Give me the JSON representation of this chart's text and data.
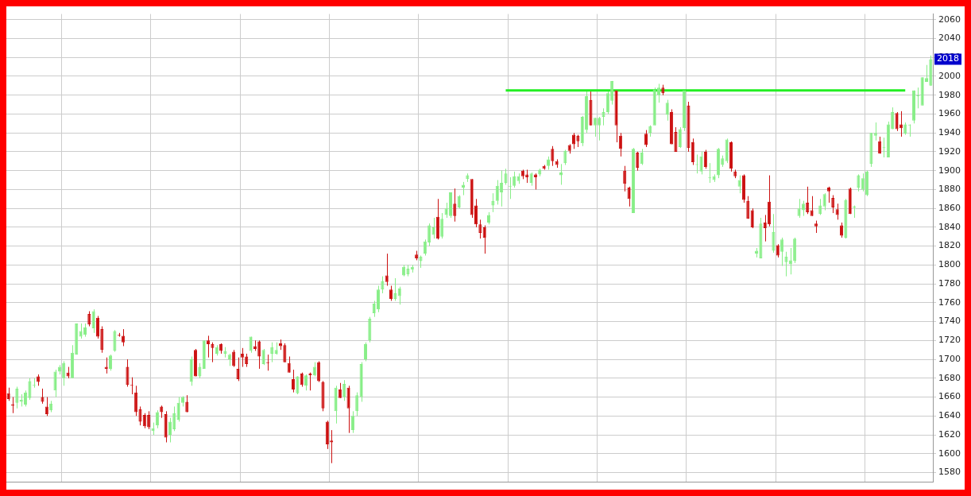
{
  "chart_data": {
    "type": "candlestick",
    "categories": [
      null,
      null,
      null,
      null,
      null,
      null,
      null,
      null,
      null,
      null,
      null,
      null,
      null,
      null,
      null,
      null,
      null,
      null,
      null,
      null,
      null,
      null,
      null,
      null,
      null,
      null,
      null,
      null,
      null,
      null,
      null,
      null,
      null,
      null,
      null,
      null,
      null,
      null,
      null,
      null,
      null,
      null,
      null,
      null,
      null,
      null,
      null,
      null,
      null,
      null,
      null,
      null,
      null,
      null,
      null,
      null,
      null,
      null,
      null,
      null,
      null,
      null,
      null,
      null,
      null,
      null,
      null,
      null,
      null,
      null,
      null,
      null,
      null,
      null,
      null,
      null,
      null,
      null,
      null,
      null,
      null,
      null,
      null,
      null,
      null,
      null,
      null,
      null,
      null,
      null,
      null,
      null,
      null,
      null,
      null,
      null,
      null,
      null,
      null,
      null,
      null,
      null,
      null,
      null,
      null,
      null,
      null,
      null,
      null,
      null,
      null,
      null,
      null,
      null,
      null,
      null,
      null,
      null,
      null,
      null,
      null,
      null,
      null,
      null,
      null,
      null,
      null,
      null,
      null,
      null,
      null,
      null,
      null,
      null,
      null,
      null,
      null,
      null,
      null,
      null,
      null,
      null,
      null,
      null,
      null,
      null,
      null,
      null,
      null,
      null,
      null,
      null,
      null,
      null,
      null,
      null,
      null,
      null,
      null,
      null,
      null,
      null,
      null,
      null,
      null,
      null,
      null,
      null,
      null,
      null,
      null,
      null,
      null,
      null,
      null,
      null,
      null,
      null,
      null,
      null,
      null,
      null,
      null,
      null,
      null,
      null,
      null,
      null,
      null,
      null,
      null,
      null,
      null,
      null,
      null,
      null,
      null,
      null,
      null,
      null,
      null,
      null,
      null,
      null,
      null,
      null,
      null,
      null,
      null,
      null,
      null,
      null,
      null,
      null,
      null,
      null,
      null,
      null
    ],
    "ohlc": [
      [
        1664,
        1670,
        1656,
        1658
      ],
      [
        1652,
        1660,
        1643,
        1651
      ],
      [
        1654,
        1671,
        1648,
        1669
      ],
      [
        1655,
        1663,
        1650,
        1657
      ],
      [
        1652,
        1667,
        1650,
        1665
      ],
      [
        1659,
        1680,
        1657,
        1677
      ],
      [
        1672,
        1680,
        1670,
        1673
      ],
      [
        1682,
        1684,
        1672,
        1676
      ],
      [
        1660,
        1669,
        1653,
        1655
      ],
      [
        1650,
        1660,
        1640,
        1642
      ],
      [
        1646,
        1656,
        1644,
        1653
      ],
      [
        1667,
        1689,
        1660,
        1687
      ],
      [
        1687,
        1694,
        1684,
        1692
      ],
      [
        1680,
        1698,
        1672,
        1696
      ],
      [
        1686,
        1692,
        1680,
        1682
      ],
      [
        1680,
        1715,
        1680,
        1707
      ],
      [
        1705,
        1738,
        1705,
        1738
      ],
      [
        1724,
        1738,
        1722,
        1730
      ],
      [
        1726,
        1738,
        1724,
        1734
      ],
      [
        1748,
        1751,
        1735,
        1737
      ],
      [
        1733,
        1753,
        1728,
        1751
      ],
      [
        1744,
        1746,
        1722,
        1724
      ],
      [
        1732,
        1735,
        1707,
        1710
      ],
      [
        1692,
        1702,
        1685,
        1690
      ],
      [
        1690,
        1705,
        1688,
        1704
      ],
      [
        1709,
        1731,
        1708,
        1730
      ],
      [
        1726,
        1728,
        1724,
        1725
      ],
      [
        1725,
        1732,
        1714,
        1718
      ],
      [
        1692,
        1700,
        1671,
        1673
      ],
      [
        1673,
        1681,
        1663,
        1672
      ],
      [
        1665,
        1672,
        1640,
        1644
      ],
      [
        1647,
        1650,
        1630,
        1634
      ],
      [
        1641,
        1643,
        1627,
        1629
      ],
      [
        1641,
        1645,
        1626,
        1628
      ],
      [
        1624,
        1633,
        1620,
        1627
      ],
      [
        1630,
        1646,
        1627,
        1644
      ],
      [
        1650,
        1651,
        1638,
        1644
      ],
      [
        1642,
        1645,
        1612,
        1617
      ],
      [
        1620,
        1638,
        1612,
        1634
      ],
      [
        1626,
        1650,
        1624,
        1643
      ],
      [
        1636,
        1660,
        1634,
        1654
      ],
      [
        1654,
        1661,
        1650,
        1660
      ],
      [
        1655,
        1662,
        1644,
        1644
      ],
      [
        1676,
        1703,
        1672,
        1700
      ],
      [
        1710,
        1711,
        1682,
        1682
      ],
      [
        1682,
        1696,
        1680,
        1692
      ],
      [
        1690,
        1720,
        1690,
        1720
      ],
      [
        1720,
        1725,
        1702,
        1716
      ],
      [
        1716,
        1718,
        1697,
        1712
      ],
      [
        1706,
        1715,
        1704,
        1713
      ],
      [
        1716,
        1717,
        1706,
        1709
      ],
      [
        1706,
        1713,
        1702,
        1709
      ],
      [
        1700,
        1706,
        1693,
        1705
      ],
      [
        1708,
        1710,
        1692,
        1693
      ],
      [
        1690,
        1702,
        1677,
        1679
      ],
      [
        1706,
        1712,
        1692,
        1702
      ],
      [
        1703,
        1706,
        1692,
        1695
      ],
      [
        1709,
        1724,
        1707,
        1724
      ],
      [
        1714,
        1720,
        1709,
        1711
      ],
      [
        1719,
        1720,
        1690,
        1703
      ],
      [
        1695,
        1711,
        1694,
        1710
      ],
      [
        1697,
        1705,
        1688,
        1696
      ],
      [
        1706,
        1718,
        1697,
        1713
      ],
      [
        1706,
        1718,
        1705,
        1710
      ],
      [
        1717,
        1721,
        1710,
        1714
      ],
      [
        1715,
        1717,
        1697,
        1697
      ],
      [
        1696,
        1703,
        1686,
        1686
      ],
      [
        1679,
        1689,
        1665,
        1668
      ],
      [
        1664,
        1682,
        1663,
        1682
      ],
      [
        1685,
        1686,
        1671,
        1673
      ],
      [
        1672,
        1684,
        1667,
        1683
      ],
      [
        1685,
        1686,
        1667,
        1683
      ],
      [
        1683,
        1697,
        1682,
        1692
      ],
      [
        1697,
        1698,
        1676,
        1677
      ],
      [
        1676,
        1677,
        1645,
        1648
      ],
      [
        1634,
        1635,
        1605,
        1610
      ],
      [
        1614,
        1625,
        1590,
        1612
      ],
      [
        1645,
        1672,
        1632,
        1670
      ],
      [
        1668,
        1675,
        1659,
        1659
      ],
      [
        1660,
        1678,
        1656,
        1674
      ],
      [
        1670,
        1672,
        1622,
        1648
      ],
      [
        1625,
        1645,
        1622,
        1640
      ],
      [
        1645,
        1665,
        1640,
        1662
      ],
      [
        1660,
        1697,
        1655,
        1695
      ],
      [
        1700,
        1718,
        1698,
        1716
      ],
      [
        1720,
        1745,
        1718,
        1743
      ],
      [
        1749,
        1762,
        1745,
        1759
      ],
      [
        1753,
        1778,
        1750,
        1774
      ],
      [
        1774,
        1788,
        1770,
        1783
      ],
      [
        1789,
        1812,
        1778,
        1782
      ],
      [
        1774,
        1778,
        1762,
        1764
      ],
      [
        1764,
        1786,
        1762,
        1770
      ],
      [
        1767,
        1777,
        1758,
        1775
      ],
      [
        1789,
        1800,
        1788,
        1798
      ],
      [
        1790,
        1800,
        1788,
        1796
      ],
      [
        1795,
        1800,
        1792,
        1798
      ],
      [
        1811,
        1815,
        1805,
        1807
      ],
      [
        1804,
        1810,
        1797,
        1809
      ],
      [
        1812,
        1827,
        1810,
        1825
      ],
      [
        1824,
        1844,
        1820,
        1842
      ],
      [
        1832,
        1850,
        1828,
        1840
      ],
      [
        1851,
        1870,
        1827,
        1828
      ],
      [
        1830,
        1855,
        1828,
        1849
      ],
      [
        1853,
        1866,
        1850,
        1860
      ],
      [
        1852,
        1877,
        1850,
        1877
      ],
      [
        1865,
        1881,
        1846,
        1852
      ],
      [
        1861,
        1874,
        1860,
        1873
      ],
      [
        1882,
        1888,
        1874,
        1885
      ],
      [
        1891,
        1897,
        1888,
        1895
      ],
      [
        1891,
        1891,
        1850,
        1853
      ],
      [
        1863,
        1870,
        1840,
        1843
      ],
      [
        1843,
        1848,
        1828,
        1834
      ],
      [
        1840,
        1842,
        1812,
        1829
      ],
      [
        1845,
        1856,
        1843,
        1853
      ],
      [
        1863,
        1876,
        1856,
        1868
      ],
      [
        1868,
        1890,
        1864,
        1884
      ],
      [
        1877,
        1900,
        1862,
        1887
      ],
      [
        1887,
        1902,
        1885,
        1897
      ],
      [
        1883,
        1893,
        1870,
        1883
      ],
      [
        1884,
        1899,
        1882,
        1894
      ],
      [
        1889,
        1897,
        1886,
        1894
      ],
      [
        1900,
        1901,
        1891,
        1894
      ],
      [
        1896,
        1901,
        1887,
        1893
      ],
      [
        1887,
        1898,
        1884,
        1897
      ],
      [
        1896,
        1897,
        1880,
        1893
      ],
      [
        1896,
        1902,
        1894,
        1901
      ],
      [
        1905,
        1906,
        1901,
        1902
      ],
      [
        1905,
        1915,
        1901,
        1912
      ],
      [
        1923,
        1926,
        1905,
        1910
      ],
      [
        1910,
        1912,
        1903,
        1906
      ],
      [
        1895,
        1907,
        1885,
        1898
      ],
      [
        1908,
        1922,
        1906,
        1921
      ],
      [
        1927,
        1928,
        1918,
        1921
      ],
      [
        1938,
        1940,
        1923,
        1928
      ],
      [
        1937,
        1938,
        1925,
        1931
      ],
      [
        1929,
        1958,
        1926,
        1957
      ],
      [
        1943,
        1985,
        1940,
        1979
      ],
      [
        1975,
        1984,
        1948,
        1948
      ],
      [
        1948,
        1956,
        1936,
        1956
      ],
      [
        1948,
        1957,
        1932,
        1956
      ],
      [
        1957,
        1966,
        1948,
        1962
      ],
      [
        1962,
        1984,
        1960,
        1982
      ],
      [
        1974,
        1995,
        1970,
        1995
      ],
      [
        1985,
        1985,
        1930,
        1948
      ],
      [
        1937,
        1940,
        1915,
        1923
      ],
      [
        1900,
        1905,
        1878,
        1886
      ],
      [
        1882,
        1883,
        1862,
        1870
      ],
      [
        1855,
        1924,
        1855,
        1923
      ],
      [
        1919,
        1920,
        1900,
        1903
      ],
      [
        1907,
        1923,
        1906,
        1919
      ],
      [
        1939,
        1943,
        1925,
        1927
      ],
      [
        1940,
        1948,
        1936,
        1947
      ],
      [
        1948,
        1988,
        1948,
        1986
      ],
      [
        1980,
        1992,
        1972,
        1988
      ],
      [
        1988,
        1991,
        1980,
        1982
      ],
      [
        1959,
        1975,
        1953,
        1972
      ],
      [
        1962,
        1965,
        1928,
        1928
      ],
      [
        1941,
        1946,
        1920,
        1920
      ],
      [
        1925,
        1946,
        1924,
        1944
      ],
      [
        1945,
        1985,
        1942,
        1985
      ],
      [
        1969,
        1973,
        1920,
        1924
      ],
      [
        1930,
        1934,
        1906,
        1909
      ],
      [
        1906,
        1917,
        1897,
        1906
      ],
      [
        1899,
        1920,
        1896,
        1915
      ],
      [
        1920,
        1922,
        1902,
        1904
      ],
      [
        1892,
        1908,
        1887,
        1892
      ],
      [
        1890,
        1896,
        1888,
        1894
      ],
      [
        1895,
        1924,
        1892,
        1923
      ],
      [
        1906,
        1916,
        1904,
        1913
      ],
      [
        1910,
        1934,
        1908,
        1933
      ],
      [
        1930,
        1931,
        1899,
        1902
      ],
      [
        1899,
        1901,
        1892,
        1894
      ],
      [
        1883,
        1895,
        1876,
        1890
      ],
      [
        1895,
        1896,
        1866,
        1869
      ],
      [
        1868,
        1873,
        1849,
        1849
      ],
      [
        1858,
        1860,
        1839,
        1840
      ],
      [
        1812,
        1818,
        1808,
        1815
      ],
      [
        1807,
        1850,
        1807,
        1844
      ],
      [
        1845,
        1853,
        1825,
        1839
      ],
      [
        1867,
        1895,
        1841,
        1843
      ],
      [
        1815,
        1854,
        1813,
        1835
      ],
      [
        1821,
        1822,
        1808,
        1810
      ],
      [
        1814,
        1829,
        1799,
        1827
      ],
      [
        1803,
        1814,
        1788,
        1809
      ],
      [
        1801,
        1818,
        1790,
        1805
      ],
      [
        1804,
        1829,
        1802,
        1828
      ],
      [
        1852,
        1870,
        1850,
        1860
      ],
      [
        1858,
        1868,
        1852,
        1865
      ],
      [
        1866,
        1883,
        1854,
        1856
      ],
      [
        1858,
        1873,
        1852,
        1852
      ],
      [
        1844,
        1847,
        1834,
        1841
      ],
      [
        1854,
        1870,
        1853,
        1863
      ],
      [
        1862,
        1876,
        1858,
        1875
      ],
      [
        1882,
        1883,
        1866,
        1878
      ],
      [
        1871,
        1874,
        1855,
        1861
      ],
      [
        1859,
        1865,
        1848,
        1853
      ],
      [
        1842,
        1845,
        1829,
        1831
      ],
      [
        1829,
        1870,
        1828,
        1869
      ],
      [
        1881,
        1882,
        1854,
        1854
      ],
      [
        1861,
        1863,
        1850,
        1861
      ],
      [
        1882,
        1896,
        1878,
        1895
      ],
      [
        1880,
        1897,
        1878,
        1892
      ],
      [
        1874,
        1900,
        1873,
        1899
      ],
      [
        1907,
        1940,
        1904,
        1940
      ],
      [
        1937,
        1951,
        1932,
        1940
      ],
      [
        1931,
        1936,
        1918,
        1918
      ],
      [
        1924,
        1935,
        1914,
        1924
      ],
      [
        1914,
        1952,
        1914,
        1949
      ],
      [
        1944,
        1967,
        1944,
        1962
      ],
      [
        1961,
        1962,
        1942,
        1944
      ],
      [
        1949,
        1963,
        1936,
        1945
      ],
      [
        1939,
        1951,
        1938,
        1949
      ],
      [
        1948,
        1949,
        1936,
        1948
      ],
      [
        1953,
        1985,
        1950,
        1985
      ],
      [
        1979,
        1988,
        1966,
        1979
      ],
      [
        1969,
        1999,
        1969,
        1999
      ],
      [
        1994,
        2012,
        1994,
        1998
      ],
      [
        1990,
        2022,
        1990,
        2018
      ]
    ],
    "colors": [
      "#cc1111",
      "#cc1111",
      "#88ee88",
      "#88ee88",
      "#88ee88",
      "#88ee88",
      "#88ee88",
      "#cc1111",
      "#cc1111",
      "#cc1111",
      "#88ee88",
      "#88ee88",
      "#88ee88",
      "#88ee88",
      "#cc1111",
      "#88ee88",
      "#88ee88",
      "#88ee88",
      "#88ee88",
      "#cc1111",
      "#88ee88",
      "#cc1111",
      "#cc1111",
      "#cc1111",
      "#88ee88",
      "#88ee88",
      "#cc1111",
      "#cc1111",
      "#cc1111",
      "#cc1111",
      "#cc1111",
      "#cc1111",
      "#cc1111",
      "#cc1111",
      "#88ee88",
      "#88ee88",
      "#cc1111",
      "#cc1111",
      "#88ee88",
      "#88ee88",
      "#88ee88",
      "#88ee88",
      "#cc1111",
      "#88ee88",
      "#cc1111",
      "#88ee88",
      "#88ee88",
      "#cc1111",
      "#cc1111",
      "#88ee88",
      "#cc1111",
      "#88ee88",
      "#88ee88",
      "#cc1111",
      "#cc1111",
      "#cc1111",
      "#cc1111",
      "#88ee88",
      "#cc1111",
      "#cc1111",
      "#88ee88",
      "#cc1111",
      "#88ee88",
      "#88ee88",
      "#cc1111",
      "#cc1111",
      "#cc1111",
      "#cc1111",
      "#88ee88",
      "#cc1111",
      "#88ee88",
      "#cc1111",
      "#88ee88",
      "#cc1111",
      "#cc1111",
      "#cc1111",
      "#cc1111",
      "#88ee88",
      "#cc1111",
      "#88ee88",
      "#cc1111",
      "#88ee88",
      "#88ee88",
      "#88ee88",
      "#88ee88",
      "#88ee88",
      "#88ee88",
      "#88ee88",
      "#88ee88",
      "#cc1111",
      "#cc1111",
      "#88ee88",
      "#88ee88",
      "#88ee88",
      "#88ee88",
      "#88ee88",
      "#cc1111",
      "#88ee88",
      "#88ee88",
      "#88ee88",
      "#88ee88",
      "#cc1111",
      "#88ee88",
      "#88ee88",
      "#88ee88",
      "#cc1111",
      "#88ee88",
      "#88ee88",
      "#88ee88",
      "#cc1111",
      "#cc1111",
      "#cc1111",
      "#cc1111",
      "#88ee88",
      "#88ee88",
      "#88ee88",
      "#88ee88",
      "#88ee88",
      "#88ee88",
      "#88ee88",
      "#88ee88",
      "#cc1111",
      "#cc1111",
      "#88ee88",
      "#cc1111",
      "#88ee88",
      "#cc1111",
      "#88ee88",
      "#cc1111",
      "#cc1111",
      "#88ee88",
      "#88ee88",
      "#cc1111",
      "#cc1111",
      "#cc1111",
      "#88ee88",
      "#88ee88",
      "#cc1111",
      "#88ee88",
      "#88ee88",
      "#88ee88",
      "#88ee88",
      "#88ee88",
      "#cc1111",
      "#cc1111",
      "#cc1111",
      "#cc1111",
      "#88ee88",
      "#cc1111",
      "#88ee88",
      "#cc1111",
      "#88ee88",
      "#88ee88",
      "#88ee88",
      "#cc1111",
      "#88ee88",
      "#cc1111",
      "#cc1111",
      "#88ee88",
      "#88ee88",
      "#cc1111",
      "#cc1111",
      "#88ee88",
      "#88ee88",
      "#cc1111",
      "#88ee88",
      "#88ee88",
      "#88ee88",
      "#88ee88",
      "#88ee88",
      "#cc1111",
      "#cc1111",
      "#88ee88",
      "#cc1111",
      "#cc1111",
      "#cc1111",
      "#88ee88",
      "#88ee88",
      "#cc1111",
      "#cc1111",
      "#88ee88",
      "#cc1111",
      "#88ee88",
      "#88ee88",
      "#88ee88",
      "#88ee88",
      "#88ee88",
      "#88ee88",
      "#cc1111",
      "#cc1111",
      "#cc1111",
      "#88ee88",
      "#88ee88",
      "#cc1111",
      "#cc1111",
      "#cc1111",
      "#cc1111",
      "#88ee88",
      "#cc1111",
      "#88ee88",
      "#88ee88",
      "#88ee88",
      "#88ee88",
      "#88ee88",
      "#88ee88",
      "#cc1111",
      "#88ee88",
      "#88ee88",
      "#88ee88",
      "#cc1111",
      "#cc1111",
      "#88ee88",
      "#88ee88",
      "#88ee88",
      "#88ee88",
      "#88ee88",
      "#88ee88",
      "#88ee88"
    ],
    "series": [
      {
        "type": "line",
        "color": "#22ee22",
        "values": [
          null,
          null,
          null,
          null,
          null,
          null,
          null,
          null,
          null,
          null,
          null,
          null,
          null,
          null,
          null,
          null,
          null,
          null,
          null,
          null,
          null,
          null,
          null,
          null,
          null,
          null,
          null,
          null,
          null,
          null,
          null,
          null,
          null,
          null,
          null,
          null,
          null,
          null,
          null,
          null,
          null,
          null,
          null,
          null,
          null,
          null,
          null,
          null,
          null,
          null,
          null,
          null,
          null,
          null,
          null,
          null,
          null,
          null,
          null,
          null,
          null,
          null,
          null,
          null,
          null,
          null,
          null,
          null,
          null,
          null,
          null,
          null,
          null,
          null,
          null,
          null,
          null,
          null,
          null,
          null,
          null,
          null,
          null,
          null,
          null,
          null,
          null,
          null,
          null,
          null,
          null,
          null,
          null,
          null,
          null,
          null,
          null,
          null,
          null,
          null,
          null,
          null,
          null,
          null,
          null,
          null,
          null,
          null,
          null,
          null,
          null,
          null,
          null,
          null,
          null,
          null,
          null,
          1985,
          1985,
          1985,
          1985,
          1985,
          1985,
          1985,
          1985,
          1985,
          1985,
          1985,
          1985,
          1985,
          1985,
          1985,
          1985,
          1985,
          1985,
          1985,
          1985,
          1985,
          1985,
          1985,
          1985,
          1985,
          1985,
          1985,
          1985,
          1985,
          1985,
          1985,
          1985,
          1985,
          1985,
          1985,
          1985,
          1985,
          1985,
          1985,
          1985,
          1985,
          1985,
          1985,
          1985,
          1985,
          1985,
          1985,
          1985,
          1985,
          1985,
          1985,
          1985,
          1985,
          1985,
          1985,
          1985,
          1985,
          1985,
          1985,
          1985,
          1985,
          1985,
          1985,
          1985,
          1985,
          1985,
          1985,
          1985,
          1985,
          1985,
          1985,
          1985,
          1985,
          1985,
          1985,
          1985,
          1985,
          1985,
          1985,
          1985,
          1985,
          1985,
          1985,
          1985,
          1985,
          1985,
          1985,
          1985,
          1985,
          1985,
          1985,
          1985,
          1985,
          1985,
          1985,
          null,
          null,
          null,
          null,
          null,
          null
        ]
      }
    ],
    "ylim": [
      1570,
      2066
    ],
    "yticks": [
      1580,
      1600,
      1620,
      1640,
      1660,
      1680,
      1700,
      1720,
      1740,
      1760,
      1780,
      1800,
      1820,
      1840,
      1860,
      1880,
      1900,
      1920,
      1940,
      1960,
      1980,
      2000,
      2020,
      2040,
      2060
    ],
    "annotations": [
      {
        "text": "2018",
        "y": 2018
      }
    ],
    "grid": true,
    "legend": false,
    "marker": "none",
    "line_style": "solid",
    "tick_labels": "y"
  }
}
